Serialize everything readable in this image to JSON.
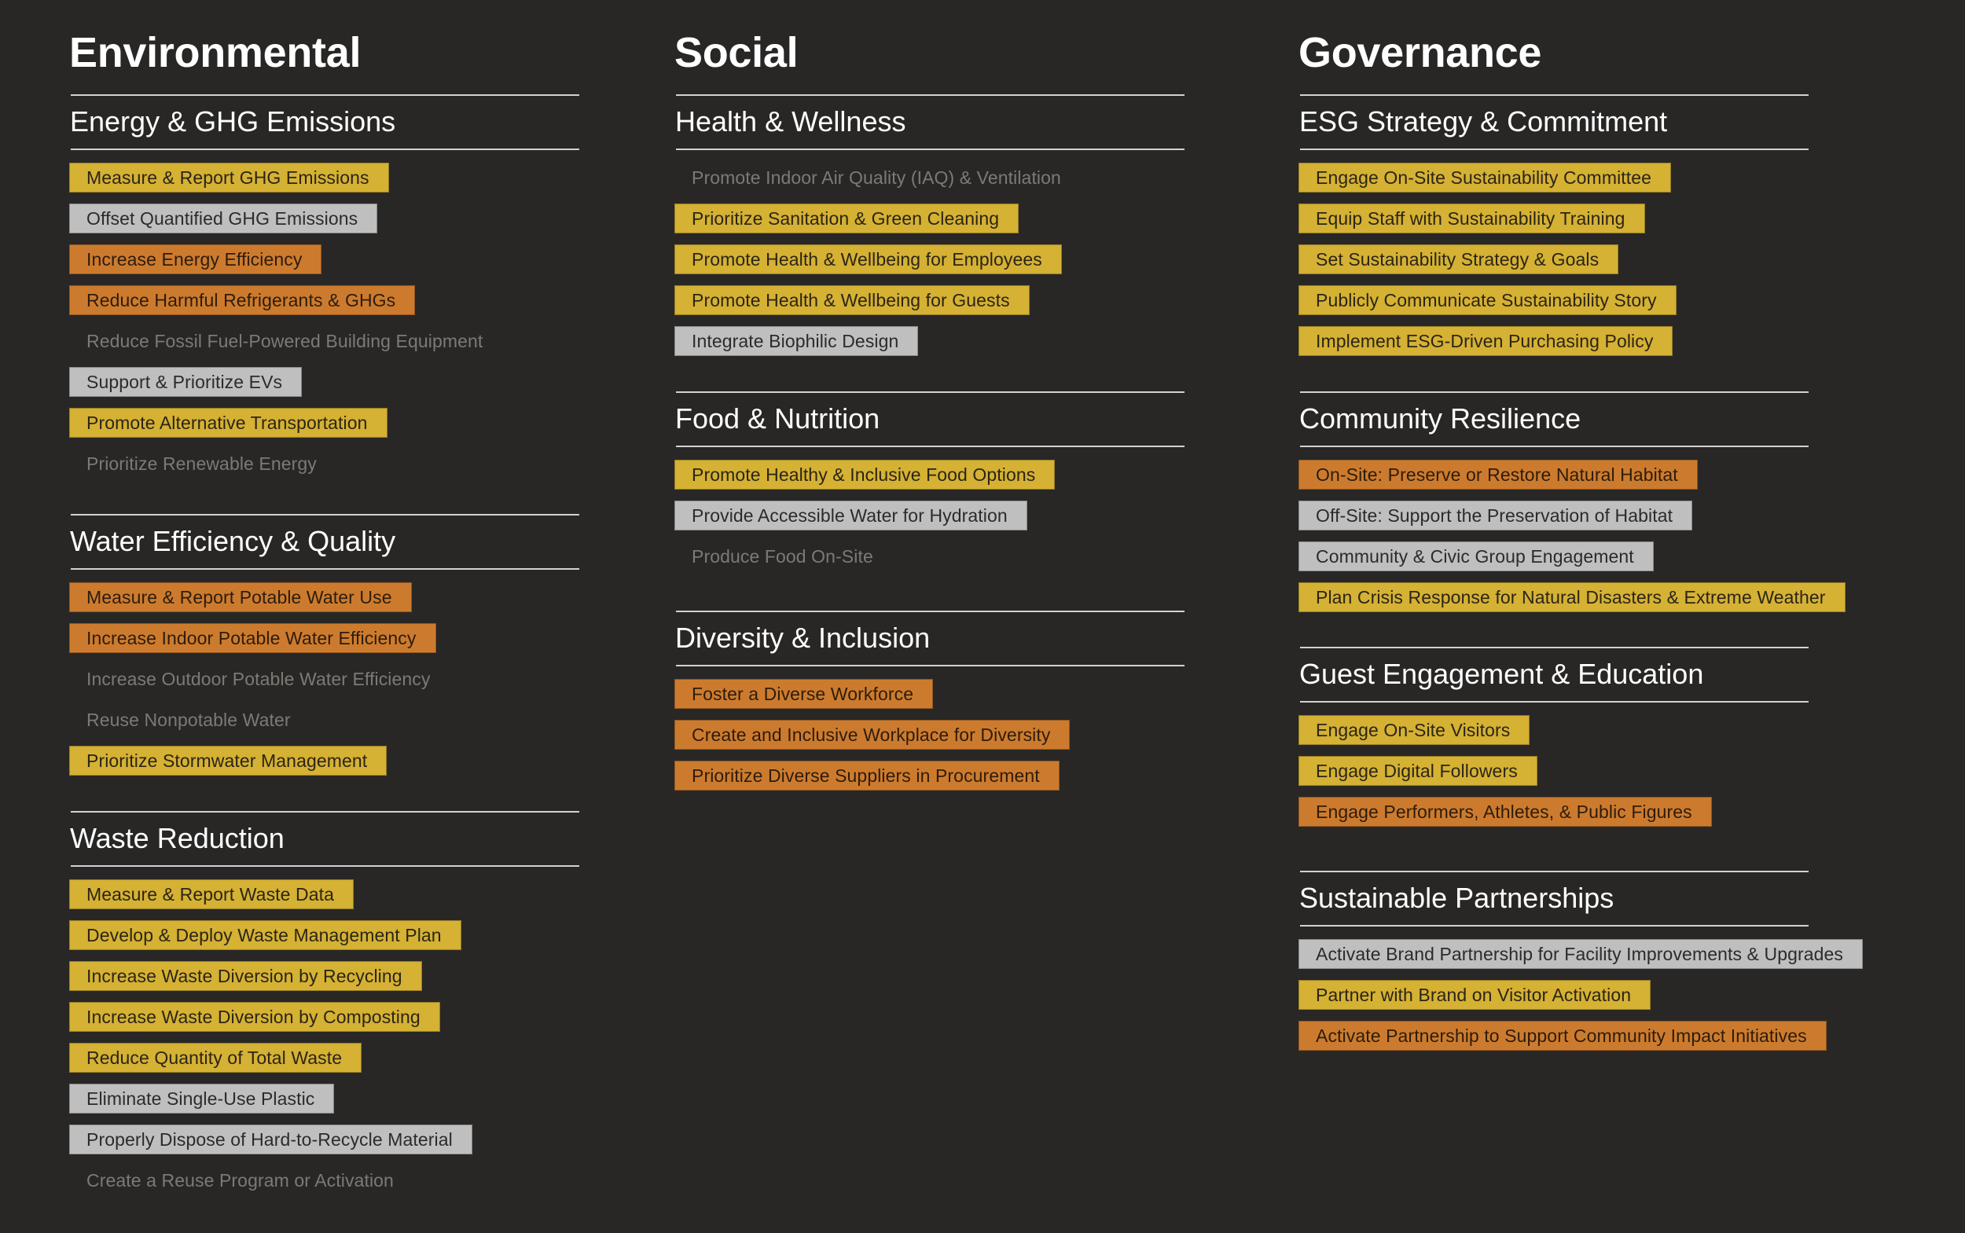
{
  "colors": {
    "background": "#282726",
    "yellow": "#d5b134",
    "gray": "#bfbfbf",
    "orange": "#cc7b2e",
    "plain_text": "#7d7a75",
    "rule": "#d2d2d2"
  },
  "columns": [
    {
      "title": "Environmental",
      "sections": [
        {
          "heading": "Energy & GHG Emissions",
          "items": [
            {
              "label": "Measure & Report GHG Emissions",
              "status": "yellow"
            },
            {
              "label": "Offset Quantified GHG Emissions",
              "status": "gray"
            },
            {
              "label": "Increase Energy Efficiency",
              "status": "orange"
            },
            {
              "label": "Reduce Harmful Refrigerants & GHGs",
              "status": "orange"
            },
            {
              "label": "Reduce Fossil Fuel-Powered Building Equipment",
              "status": "plain"
            },
            {
              "label": "Support & Prioritize EVs",
              "status": "gray"
            },
            {
              "label": "Promote Alternative Transportation",
              "status": "yellow"
            },
            {
              "label": "Prioritize Renewable Energy",
              "status": "plain"
            }
          ]
        },
        {
          "heading": "Water Efficiency & Quality",
          "items": [
            {
              "label": "Measure & Report Potable Water Use",
              "status": "orange"
            },
            {
              "label": "Increase Indoor Potable Water Efficiency",
              "status": "orange"
            },
            {
              "label": "Increase Outdoor Potable Water Efficiency",
              "status": "plain"
            },
            {
              "label": "Reuse Nonpotable Water",
              "status": "plain"
            },
            {
              "label": "Prioritize Stormwater Management",
              "status": "yellow"
            }
          ]
        },
        {
          "heading": "Waste Reduction",
          "items": [
            {
              "label": "Measure & Report Waste Data",
              "status": "yellow"
            },
            {
              "label": "Develop & Deploy Waste Management Plan",
              "status": "yellow"
            },
            {
              "label": "Increase Waste Diversion by Recycling",
              "status": "yellow"
            },
            {
              "label": "Increase Waste Diversion by Composting",
              "status": "yellow"
            },
            {
              "label": "Reduce Quantity of Total Waste",
              "status": "yellow"
            },
            {
              "label": "Eliminate Single-Use Plastic",
              "status": "gray"
            },
            {
              "label": "Properly Dispose of Hard-to-Recycle Material",
              "status": "gray"
            },
            {
              "label": "Create a Reuse Program or Activation",
              "status": "plain"
            }
          ]
        }
      ]
    },
    {
      "title": "Social",
      "sections": [
        {
          "heading": "Health & Wellness",
          "items": [
            {
              "label": "Promote Indoor Air Quality (IAQ) & Ventilation",
              "status": "plain"
            },
            {
              "label": "Prioritize Sanitation & Green Cleaning",
              "status": "yellow"
            },
            {
              "label": "Promote Health & Wellbeing for Employees",
              "status": "yellow"
            },
            {
              "label": "Promote Health & Wellbeing for Guests",
              "status": "yellow"
            },
            {
              "label": "Integrate Biophilic Design",
              "status": "gray"
            }
          ]
        },
        {
          "heading": "Food & Nutrition",
          "items": [
            {
              "label": "Promote Healthy & Inclusive Food Options",
              "status": "yellow"
            },
            {
              "label": "Provide Accessible Water for Hydration",
              "status": "gray"
            },
            {
              "label": "Produce Food On-Site",
              "status": "plain"
            }
          ]
        },
        {
          "heading": "Diversity & Inclusion",
          "items": [
            {
              "label": "Foster a Diverse Workforce",
              "status": "orange"
            },
            {
              "label": "Create and Inclusive Workplace for Diversity",
              "status": "orange"
            },
            {
              "label": "Prioritize Diverse Suppliers in Procurement",
              "status": "orange"
            }
          ]
        }
      ]
    },
    {
      "title": "Governance",
      "sections": [
        {
          "heading": "ESG Strategy & Commitment",
          "items": [
            {
              "label": "Engage On-Site Sustainability Committee",
              "status": "yellow"
            },
            {
              "label": "Equip Staff with Sustainability Training",
              "status": "yellow"
            },
            {
              "label": "Set Sustainability Strategy & Goals",
              "status": "yellow"
            },
            {
              "label": "Publicly Communicate Sustainability Story",
              "status": "yellow"
            },
            {
              "label": "Implement ESG-Driven Purchasing Policy",
              "status": "yellow"
            }
          ]
        },
        {
          "heading": "Community Resilience",
          "items": [
            {
              "label": "On-Site: Preserve or Restore Natural Habitat",
              "status": "orange"
            },
            {
              "label": "Off-Site: Support the Preservation of Habitat",
              "status": "gray"
            },
            {
              "label": "Community & Civic Group Engagement",
              "status": "gray"
            },
            {
              "label": "Plan Crisis Response for Natural Disasters & Extreme Weather",
              "status": "yellow"
            }
          ]
        },
        {
          "heading": "Guest Engagement & Education",
          "items": [
            {
              "label": "Engage On-Site Visitors",
              "status": "yellow"
            },
            {
              "label": "Engage Digital Followers",
              "status": "yellow"
            },
            {
              "label": "Engage Performers, Athletes, & Public Figures",
              "status": "orange"
            }
          ]
        },
        {
          "heading": "Sustainable Partnerships",
          "items": [
            {
              "label": "Activate Brand Partnership for Facility Improvements & Upgrades",
              "status": "gray"
            },
            {
              "label": "Partner with Brand on Visitor Activation",
              "status": "yellow"
            },
            {
              "label": "Activate Partnership to Support Community Impact Initiatives",
              "status": "orange"
            }
          ]
        }
      ]
    }
  ]
}
